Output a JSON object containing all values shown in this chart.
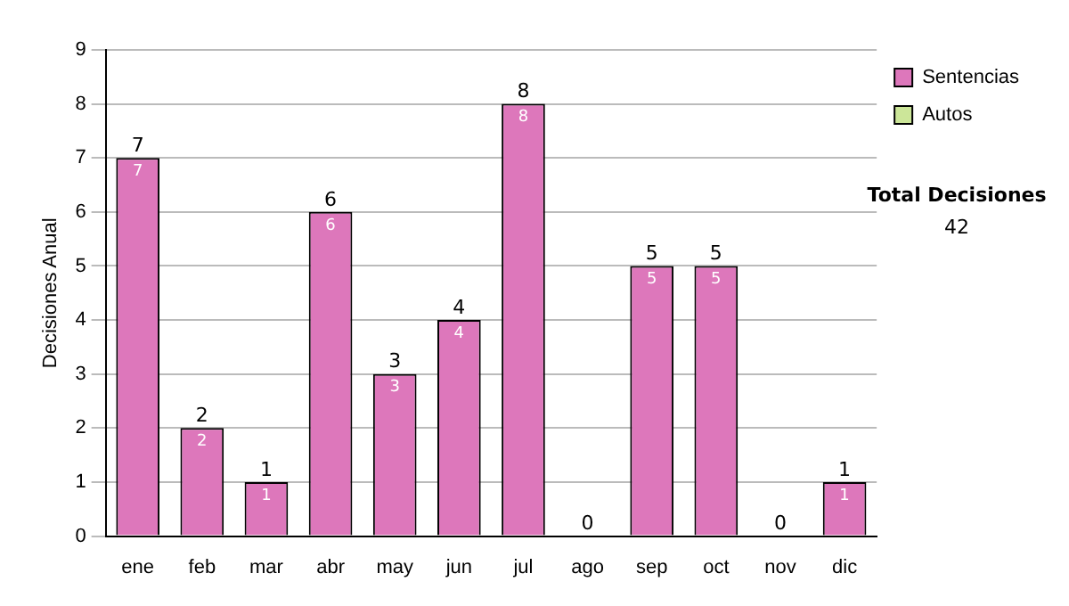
{
  "chart_data": {
    "type": "bar",
    "stacked": true,
    "ylabel": "Decisiones Anual",
    "categories": [
      "ene",
      "feb",
      "mar",
      "abr",
      "may",
      "jun",
      "jul",
      "ago",
      "sep",
      "oct",
      "nov",
      "dic"
    ],
    "series": [
      {
        "name": "Sentencias",
        "color": "#dd77bb",
        "values": [
          7,
          2,
          1,
          6,
          3,
          4,
          8,
          0,
          5,
          5,
          0,
          1
        ],
        "value_labels": [
          "7",
          "2",
          "1",
          "6",
          "3",
          "4",
          "8",
          null,
          "5",
          "5",
          null,
          "1"
        ]
      },
      {
        "name": "Autos",
        "color": "#cce699",
        "values": [
          0,
          0,
          0,
          0,
          0,
          0,
          0,
          0,
          0,
          0,
          0,
          0
        ]
      }
    ],
    "totals": [
      "7",
      "2",
      "1",
      "6",
      "3",
      "4",
      "8",
      "0",
      "5",
      "5",
      "0",
      "1"
    ],
    "ylim": [
      0,
      9
    ],
    "yticks": [
      0,
      1,
      2,
      3,
      4,
      5,
      6,
      7,
      8,
      9
    ],
    "grid": "y",
    "legend": "right",
    "annotations": [
      "Total Decisiones",
      "42"
    ]
  }
}
